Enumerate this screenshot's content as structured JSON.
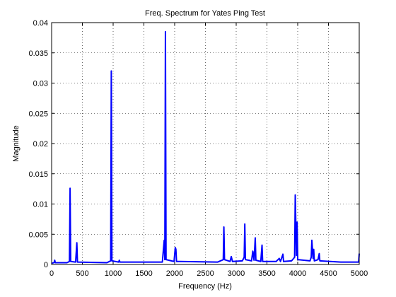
{
  "chart_data": {
    "type": "line",
    "title": "Freq. Spectrum for Yates Ping Test",
    "x_label": "Frequency (Hz)",
    "y_label": "Magnitude",
    "x": [
      0,
      40,
      50,
      60,
      250,
      290,
      300,
      310,
      390,
      410,
      420,
      900,
      960,
      970,
      980,
      1090,
      1100,
      1110,
      1800,
      1830,
      1840,
      1850,
      1860,
      1990,
      2010,
      2020,
      2030,
      2700,
      2790,
      2800,
      2810,
      2900,
      2920,
      2940,
      3100,
      3130,
      3140,
      3150,
      3250,
      3270,
      3290,
      3310,
      3320,
      3400,
      3420,
      3430,
      3650,
      3700,
      3720,
      3760,
      3770,
      3900,
      3950,
      3960,
      3980,
      3990,
      4000,
      4200,
      4220,
      4230,
      4250,
      4260,
      4270,
      4330,
      4350,
      4360,
      4700,
      4990,
      5000
    ],
    "series": [
      {
        "color": "#0000ff",
        "values": [
          0.0002,
          0.0003,
          0.0007,
          0.0003,
          0.0003,
          0.0005,
          0.0126,
          0.0005,
          0.0004,
          0.0036,
          0.0004,
          0.0003,
          0.0006,
          0.032,
          0.0006,
          0.0004,
          0.0007,
          0.0004,
          0.0004,
          0.004,
          0.0008,
          0.0385,
          0.0008,
          0.0005,
          0.0028,
          0.0025,
          0.0005,
          0.0004,
          0.0008,
          0.0062,
          0.0008,
          0.0005,
          0.0013,
          0.0005,
          0.0006,
          0.0012,
          0.0067,
          0.0008,
          0.0006,
          0.0022,
          0.0007,
          0.0044,
          0.0007,
          0.0005,
          0.0032,
          0.0005,
          0.0005,
          0.001,
          0.0005,
          0.0017,
          0.0005,
          0.0006,
          0.0012,
          0.0115,
          0.0015,
          0.007,
          0.0008,
          0.0006,
          0.0012,
          0.004,
          0.001,
          0.0025,
          0.0006,
          0.0008,
          0.0018,
          0.0006,
          0.0004,
          0.0004,
          0.0018
        ]
      }
    ],
    "xlim": [
      0,
      5000
    ],
    "xticks": [
      0,
      500,
      1000,
      1500,
      2000,
      2500,
      3000,
      3500,
      4000,
      4500,
      5000
    ],
    "ylim": [
      0,
      0.04
    ],
    "yticks": [
      0,
      0.005,
      0.01,
      0.015,
      0.02,
      0.025,
      0.03,
      0.035,
      0.04
    ],
    "grid": true
  }
}
